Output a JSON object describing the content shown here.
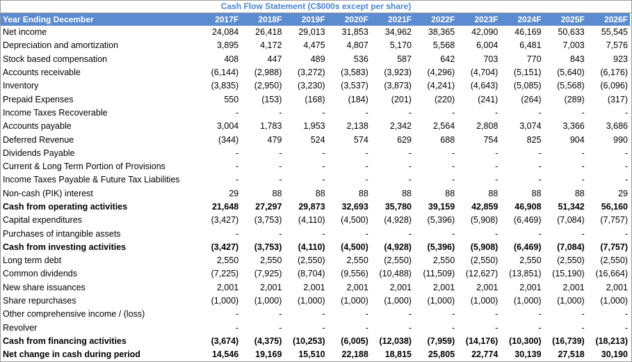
{
  "title": "Cash Flow Statement (C$000s except per share)",
  "header": {
    "label": "Year Ending December",
    "columns": [
      "2017F",
      "2018F",
      "2019F",
      "2020F",
      "2021F",
      "2022F",
      "2023F",
      "2024F",
      "2025F",
      "2026F"
    ]
  },
  "rows": [
    {
      "label": "Net income",
      "values": [
        "24,084",
        "26,418",
        "29,013",
        "31,853",
        "34,962",
        "38,365",
        "42,090",
        "46,169",
        "50,633",
        "55,545"
      ]
    },
    {
      "label": "Depreciation and amortization",
      "values": [
        "3,895",
        "4,172",
        "4,475",
        "4,807",
        "5,170",
        "5,568",
        "6,004",
        "6,481",
        "7,003",
        "7,576"
      ]
    },
    {
      "label": "Stock based compensation",
      "values": [
        "408",
        "447",
        "489",
        "536",
        "587",
        "642",
        "703",
        "770",
        "843",
        "923"
      ]
    },
    {
      "label": "Accounts receivable",
      "values": [
        "(6,144)",
        "(2,988)",
        "(3,272)",
        "(3,583)",
        "(3,923)",
        "(4,296)",
        "(4,704)",
        "(5,151)",
        "(5,640)",
        "(6,176)"
      ]
    },
    {
      "label": "Inventory",
      "values": [
        "(3,835)",
        "(2,950)",
        "(3,230)",
        "(3,537)",
        "(3,873)",
        "(4,241)",
        "(4,643)",
        "(5,085)",
        "(5,568)",
        "(6,096)"
      ]
    },
    {
      "label": "Prepaid Expenses",
      "values": [
        "550",
        "(153)",
        "(168)",
        "(184)",
        "(201)",
        "(220)",
        "(241)",
        "(264)",
        "(289)",
        "(317)"
      ]
    },
    {
      "label": "Income Taxes Recoverable",
      "values": [
        "-",
        "-",
        "-",
        "-",
        "-",
        "-",
        "-",
        "-",
        "-",
        "-"
      ]
    },
    {
      "label": "Accounts payable",
      "values": [
        "3,004",
        "1,783",
        "1,953",
        "2,138",
        "2,342",
        "2,564",
        "2,808",
        "3,074",
        "3,366",
        "3,686"
      ]
    },
    {
      "label": "Deferred Revenue",
      "values": [
        "(344)",
        "479",
        "524",
        "574",
        "629",
        "688",
        "754",
        "825",
        "904",
        "990"
      ]
    },
    {
      "label": "Dividends Payable",
      "values": [
        "-",
        "-",
        "-",
        "-",
        "-",
        "-",
        "-",
        "-",
        "-",
        "-"
      ]
    },
    {
      "label": "Current & Long Term Portion of Provisions",
      "values": [
        "-",
        "-",
        "-",
        "-",
        "-",
        "-",
        "-",
        "-",
        "-",
        "-"
      ]
    },
    {
      "label": "Income Taxes Payable & Future Tax Liabilities",
      "values": [
        "-",
        "-",
        "-",
        "-",
        "-",
        "-",
        "-",
        "-",
        "-",
        "-"
      ]
    },
    {
      "label": "Non-cash (PIK) interest",
      "values": [
        "29",
        "88",
        "88",
        "88",
        "88",
        "88",
        "88",
        "88",
        "88",
        "29"
      ]
    },
    {
      "label": "Cash from operating activities",
      "bold": true,
      "values": [
        "21,648",
        "27,297",
        "29,873",
        "32,693",
        "35,780",
        "39,159",
        "42,859",
        "46,908",
        "51,342",
        "56,160"
      ]
    },
    {
      "label": "Capital expenditures",
      "values": [
        "(3,427)",
        "(3,753)",
        "(4,110)",
        "(4,500)",
        "(4,928)",
        "(5,396)",
        "(5,908)",
        "(6,469)",
        "(7,084)",
        "(7,757)"
      ]
    },
    {
      "label": "Purchases of intangible assets",
      "values": [
        "-",
        "-",
        "-",
        "-",
        "-",
        "-",
        "-",
        "-",
        "-",
        "-"
      ]
    },
    {
      "label": "Cash from investing activities",
      "bold": true,
      "values": [
        "(3,427)",
        "(3,753)",
        "(4,110)",
        "(4,500)",
        "(4,928)",
        "(5,396)",
        "(5,908)",
        "(6,469)",
        "(7,084)",
        "(7,757)"
      ]
    },
    {
      "label": "Long term debt",
      "values": [
        "2,550",
        "2,550",
        "(2,550)",
        "2,550",
        "(2,550)",
        "2,550",
        "(2,550)",
        "2,550",
        "(2,550)",
        "(2,550)"
      ]
    },
    {
      "label": "Common dividends",
      "values": [
        "(7,225)",
        "(7,925)",
        "(8,704)",
        "(9,556)",
        "(10,488)",
        "(11,509)",
        "(12,627)",
        "(13,851)",
        "(15,190)",
        "(16,664)"
      ]
    },
    {
      "label": "New share issuances",
      "values": [
        "2,001",
        "2,001",
        "2,001",
        "2,001",
        "2,001",
        "2,001",
        "2,001",
        "2,001",
        "2,001",
        "2,001"
      ]
    },
    {
      "label": "Share repurchases",
      "values": [
        "(1,000)",
        "(1,000)",
        "(1,000)",
        "(1,000)",
        "(1,000)",
        "(1,000)",
        "(1,000)",
        "(1,000)",
        "(1,000)",
        "(1,000)"
      ]
    },
    {
      "label": "Other comprehensive income / (loss)",
      "values": [
        "-",
        "-",
        "-",
        "-",
        "-",
        "-",
        "-",
        "-",
        "-",
        "-"
      ]
    },
    {
      "label": "Revolver",
      "values": [
        "-",
        "-",
        "-",
        "-",
        "-",
        "-",
        "-",
        "-",
        "-",
        "-"
      ]
    },
    {
      "label": "Cash from financing activities",
      "bold": true,
      "values": [
        "(3,674)",
        "(4,375)",
        "(10,253)",
        "(6,005)",
        "(12,038)",
        "(7,959)",
        "(14,176)",
        "(10,300)",
        "(16,739)",
        "(18,213)"
      ]
    },
    {
      "label": "Net change in cash during period",
      "bold": true,
      "values": [
        "14,546",
        "19,169",
        "15,510",
        "22,188",
        "18,815",
        "25,805",
        "22,774",
        "30,139",
        "27,518",
        "30,190"
      ]
    }
  ]
}
